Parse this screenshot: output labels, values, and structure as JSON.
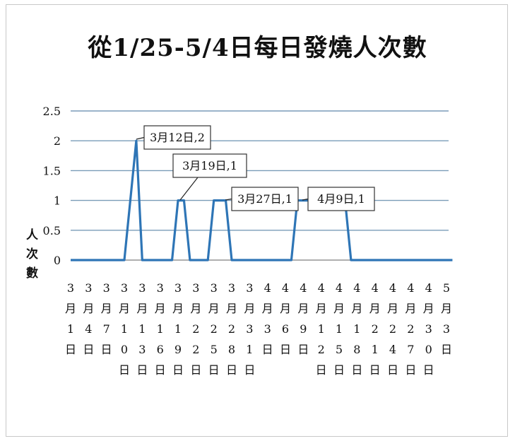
{
  "chart_data": {
    "type": "line",
    "title": "從1/25-5/4日每日發燒人次數",
    "ylabel": "人次數",
    "xlabel": "",
    "ylim": [
      0,
      2.5
    ],
    "yticks": [
      "0",
      "0.5",
      "1",
      "1.5",
      "2",
      "2.5"
    ],
    "grid": true,
    "x_tick_labels": [
      "3月1日",
      "3月4日",
      "3月7日",
      "3月10日",
      "3月13日",
      "3月16日",
      "3月19日",
      "3月22日",
      "3月25日",
      "3月28日",
      "3月31日",
      "4月3日",
      "4月6日",
      "4月9日",
      "4月12日",
      "4月15日",
      "4月18日",
      "4月21日",
      "4月24日",
      "4月27日",
      "4月30日",
      "5月3日"
    ],
    "series": [
      {
        "x": [
          "3月1日",
          "3月10日",
          "3月12日",
          "3月13日",
          "3月18日",
          "3月19日",
          "3月20日",
          "3月21日",
          "3月22日",
          "3月23日",
          "3月24日",
          "3月25日",
          "3月26日",
          "3月27日",
          "3月28日",
          "4月7日",
          "4月8日",
          "4月9日",
          "4月16日",
          "4月17日",
          "5月4日"
        ],
        "values": [
          0,
          0,
          2,
          0,
          0,
          1,
          1,
          0,
          0,
          0,
          0,
          1,
          1,
          1,
          0,
          0,
          1,
          1,
          1,
          0,
          0
        ],
        "color": "#2e75b6"
      }
    ],
    "annotations": [
      {
        "text": "3月12日,2"
      },
      {
        "text": "3月19日,1"
      },
      {
        "text": "3月27日,1"
      },
      {
        "text": "4月9日,1"
      }
    ]
  }
}
